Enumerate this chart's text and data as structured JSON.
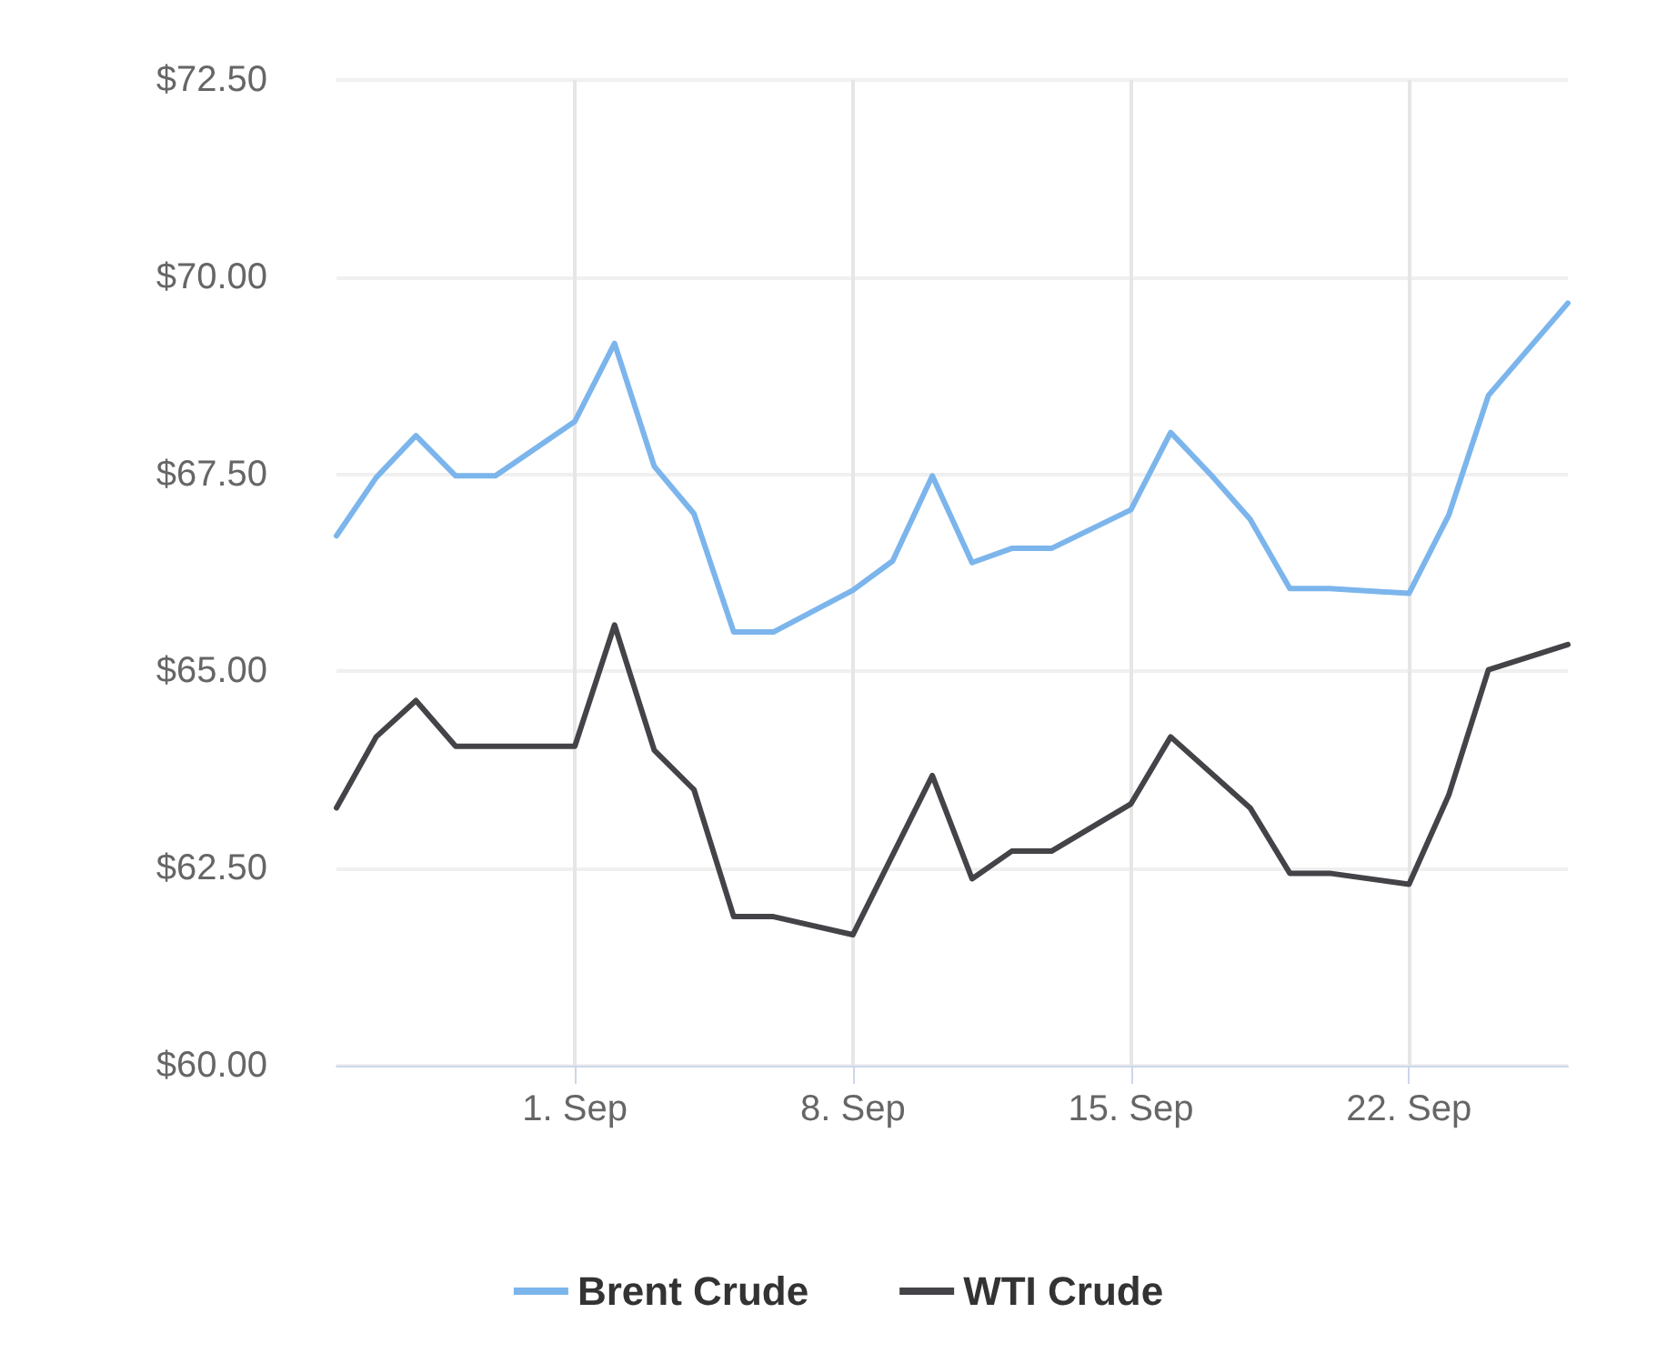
{
  "chart_data": {
    "type": "line",
    "xlim": [
      "--08-26",
      "--09-26"
    ],
    "xticks": [
      {
        "value": "--09-01",
        "label": "1. Sep"
      },
      {
        "value": "--09-08",
        "label": "8. Sep"
      },
      {
        "value": "--09-15",
        "label": "15. Sep"
      },
      {
        "value": "--09-22",
        "label": "22. Sep"
      }
    ],
    "ylim": [
      60,
      72.5
    ],
    "yticks": [
      {
        "value": 60,
        "label": "$60.00"
      },
      {
        "value": 62.5,
        "label": "$62.50"
      },
      {
        "value": 65,
        "label": "$65.00"
      },
      {
        "value": 67.5,
        "label": "$67.50"
      },
      {
        "value": 70,
        "label": "$70.00"
      },
      {
        "value": 72.5,
        "label": "$72.50"
      }
    ],
    "grid": true,
    "legend": "bottom",
    "marker": "none",
    "line_style": "solid",
    "series": [
      {
        "name": "Brent Crude",
        "color": "#7cb5ec",
        "x": [
          "--08-26",
          "--08-27",
          "--08-28",
          "--08-29",
          "--08-30",
          "--09-01",
          "--09-02",
          "--09-03",
          "--09-04",
          "--09-05",
          "--09-06",
          "--09-08",
          "--09-09",
          "--09-10",
          "--09-11",
          "--09-12",
          "--09-13",
          "--09-15",
          "--09-16",
          "--09-17",
          "--09-18",
          "--09-19",
          "--09-20",
          "--09-22",
          "--09-23",
          "--09-24",
          "--09-26"
        ],
        "values": [
          66.72,
          67.46,
          67.99,
          67.48,
          67.48,
          68.17,
          69.16,
          67.6,
          67.0,
          65.5,
          65.5,
          66.03,
          66.4,
          67.48,
          66.38,
          66.56,
          66.56,
          67.05,
          68.03,
          67.5,
          66.93,
          66.05,
          66.05,
          65.99,
          66.98,
          68.5,
          69.67
        ]
      },
      {
        "name": "WTI Crude",
        "color": "#434348",
        "x": [
          "--08-26",
          "--08-27",
          "--08-28",
          "--08-29",
          "--08-30",
          "--09-01",
          "--09-02",
          "--09-03",
          "--09-04",
          "--09-05",
          "--09-06",
          "--09-08",
          "--09-10",
          "--09-11",
          "--09-12",
          "--09-13",
          "--09-15",
          "--09-16",
          "--09-18",
          "--09-19",
          "--09-20",
          "--09-22",
          "--09-23",
          "--09-24",
          "--09-26"
        ],
        "values": [
          63.27,
          64.17,
          64.63,
          64.05,
          64.05,
          64.05,
          65.59,
          64.0,
          63.5,
          61.89,
          61.89,
          61.66,
          63.68,
          62.37,
          62.72,
          62.72,
          63.32,
          64.17,
          63.27,
          62.44,
          62.44,
          62.3,
          63.43,
          65.02,
          65.34
        ]
      }
    ]
  }
}
